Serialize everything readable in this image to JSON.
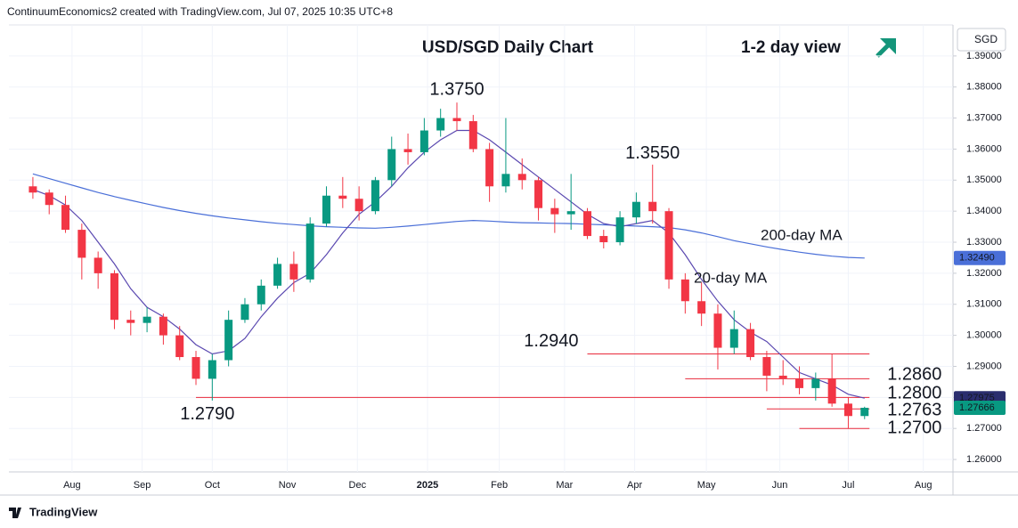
{
  "header": "ContinuumEconomics2 created with TradingView.com, Jul 07, 2025 10:35 UTC+8",
  "footer": "TradingView",
  "chart_data": {
    "type": "candlestick",
    "title": "USD/SGD Daily Chart",
    "subtitle": "1-2 day view",
    "currency": "SGD",
    "up_color": "#089981",
    "down_color": "#f23645",
    "annotation_color": "#e8293b",
    "candles": [
      [
        1.348,
        1.351,
        1.344,
        1.346
      ],
      [
        1.346,
        1.347,
        1.339,
        1.342
      ],
      [
        1.342,
        1.345,
        1.333,
        1.334
      ],
      [
        1.334,
        1.336,
        1.318,
        1.325
      ],
      [
        1.325,
        1.327,
        1.315,
        1.32
      ],
      [
        1.32,
        1.321,
        1.302,
        1.305
      ],
      [
        1.305,
        1.308,
        1.3,
        1.304
      ],
      [
        1.304,
        1.309,
        1.301,
        1.306
      ],
      [
        1.306,
        1.307,
        1.297,
        1.3
      ],
      [
        1.3,
        1.303,
        1.292,
        1.293
      ],
      [
        1.293,
        1.295,
        1.284,
        1.286
      ],
      [
        1.286,
        1.294,
        1.279,
        1.292
      ],
      [
        1.292,
        1.308,
        1.29,
        1.305
      ],
      [
        1.305,
        1.312,
        1.304,
        1.31
      ],
      [
        1.31,
        1.318,
        1.308,
        1.316
      ],
      [
        1.316,
        1.325,
        1.315,
        1.323
      ],
      [
        1.323,
        1.327,
        1.314,
        1.318
      ],
      [
        1.318,
        1.338,
        1.317,
        1.336
      ],
      [
        1.336,
        1.348,
        1.335,
        1.345
      ],
      [
        1.345,
        1.351,
        1.341,
        1.344
      ],
      [
        1.344,
        1.348,
        1.337,
        1.34
      ],
      [
        1.34,
        1.351,
        1.339,
        1.35
      ],
      [
        1.35,
        1.364,
        1.348,
        1.36
      ],
      [
        1.36,
        1.365,
        1.355,
        1.359
      ],
      [
        1.359,
        1.37,
        1.358,
        1.366
      ],
      [
        1.366,
        1.373,
        1.364,
        1.37
      ],
      [
        1.37,
        1.375,
        1.366,
        1.369
      ],
      [
        1.369,
        1.371,
        1.359,
        1.36
      ],
      [
        1.36,
        1.362,
        1.343,
        1.348
      ],
      [
        1.348,
        1.37,
        1.346,
        1.352
      ],
      [
        1.352,
        1.357,
        1.347,
        1.35
      ],
      [
        1.35,
        1.351,
        1.337,
        1.341
      ],
      [
        1.341,
        1.344,
        1.333,
        1.339
      ],
      [
        1.339,
        1.352,
        1.334,
        1.34
      ],
      [
        1.34,
        1.341,
        1.331,
        1.332
      ],
      [
        1.332,
        1.334,
        1.328,
        1.33
      ],
      [
        1.33,
        1.34,
        1.329,
        1.338
      ],
      [
        1.338,
        1.346,
        1.336,
        1.343
      ],
      [
        1.343,
        1.355,
        1.336,
        1.34
      ],
      [
        1.34,
        1.341,
        1.315,
        1.318
      ],
      [
        1.318,
        1.32,
        1.307,
        1.311
      ],
      [
        1.311,
        1.317,
        1.303,
        1.307
      ],
      [
        1.307,
        1.31,
        1.289,
        1.296
      ],
      [
        1.296,
        1.308,
        1.294,
        1.302
      ],
      [
        1.302,
        1.304,
        1.292,
        1.293
      ],
      [
        1.293,
        1.295,
        1.282,
        1.287
      ],
      [
        1.287,
        1.292,
        1.284,
        1.286
      ],
      [
        1.286,
        1.29,
        1.281,
        1.283
      ],
      [
        1.283,
        1.288,
        1.279,
        1.286
      ],
      [
        1.286,
        1.294,
        1.277,
        1.278
      ],
      [
        1.278,
        1.28,
        1.27,
        1.274
      ],
      [
        1.274,
        1.277,
        1.273,
        1.27666
      ]
    ],
    "last_close_label": "1.27666",
    "series": [
      {
        "name": "200-day MA",
        "color": "#4a6fd8",
        "last_label": "1.32490",
        "values": [
          1.352,
          1.3505,
          1.349,
          1.3475,
          1.346,
          1.3447,
          1.3435,
          1.3423,
          1.3412,
          1.3402,
          1.3393,
          1.3385,
          1.3378,
          1.3372,
          1.3366,
          1.3361,
          1.3357,
          1.3353,
          1.335,
          1.3348,
          1.3346,
          1.3345,
          1.3348,
          1.3352,
          1.3357,
          1.3362,
          1.3367,
          1.337,
          1.3368,
          1.3365,
          1.3363,
          1.3362,
          1.3361,
          1.336,
          1.3358,
          1.3356,
          1.3354,
          1.3352,
          1.335,
          1.3347,
          1.334,
          1.333,
          1.3318,
          1.3305,
          1.3295,
          1.3285,
          1.3276,
          1.3268,
          1.3261,
          1.3255,
          1.3251,
          1.3249
        ]
      },
      {
        "name": "20-day MA",
        "color": "#5a48b0",
        "last_label": "1.27975",
        "values": [
          1.347,
          1.345,
          1.342,
          1.337,
          1.33,
          1.323,
          1.315,
          1.309,
          1.306,
          1.302,
          1.297,
          1.294,
          1.295,
          1.299,
          1.306,
          1.312,
          1.317,
          1.32,
          1.326,
          1.333,
          1.339,
          1.343,
          1.348,
          1.354,
          1.359,
          1.363,
          1.366,
          1.366,
          1.363,
          1.359,
          1.355,
          1.351,
          1.347,
          1.343,
          1.339,
          1.336,
          1.335,
          1.336,
          1.337,
          1.333,
          1.326,
          1.318,
          1.311,
          1.305,
          1.301,
          1.298,
          1.293,
          1.288,
          1.286,
          1.284,
          1.281,
          1.27975
        ]
      }
    ],
    "levels": [
      {
        "value": 1.294,
        "label": "1.2940"
      },
      {
        "value": 1.286,
        "label": "1.2860"
      },
      {
        "value": 1.28,
        "label": "1.2800"
      },
      {
        "value": 1.2763,
        "label": "1.2763"
      },
      {
        "value": 1.27,
        "label": "1.2700"
      }
    ],
    "annotations": [
      {
        "value": 1.375,
        "label": "1.3750"
      },
      {
        "value": 1.355,
        "label": "1.3550"
      },
      {
        "value": 1.279,
        "label": "1.2790"
      }
    ],
    "xlim": [
      -1.47,
      56.42
    ],
    "xticks": [
      {
        "value": 2.4,
        "label": "Aug"
      },
      {
        "value": 6.7,
        "label": "Sep"
      },
      {
        "value": 11.0,
        "label": "Oct"
      },
      {
        "value": 15.6,
        "label": "Nov"
      },
      {
        "value": 19.9,
        "label": "Dec"
      },
      {
        "value": 24.2,
        "label": "2025"
      },
      {
        "value": 28.6,
        "label": "Feb"
      },
      {
        "value": 32.6,
        "label": "Mar"
      },
      {
        "value": 36.9,
        "label": "Apr"
      },
      {
        "value": 41.3,
        "label": "May"
      },
      {
        "value": 45.8,
        "label": "Jun"
      },
      {
        "value": 50.0,
        "label": "Jul"
      },
      {
        "value": 54.6,
        "label": "Aug"
      }
    ],
    "ylim": [
      1.256,
      1.4
    ],
    "yticks": [
      {
        "value": 1.26,
        "label": "1.26000"
      },
      {
        "value": 1.27,
        "label": "1.27000"
      },
      {
        "value": 1.28,
        "label": "1.28000"
      },
      {
        "value": 1.29,
        "label": "1.29000"
      },
      {
        "value": 1.3,
        "label": "1.30000"
      },
      {
        "value": 1.31,
        "label": "1.31000"
      },
      {
        "value": 1.32,
        "label": "1.32000"
      },
      {
        "value": 1.33,
        "label": "1.33000"
      },
      {
        "value": 1.34,
        "label": "1.34000"
      },
      {
        "value": 1.35,
        "label": "1.35000"
      },
      {
        "value": 1.36,
        "label": "1.36000"
      },
      {
        "value": 1.37,
        "label": "1.37000"
      },
      {
        "value": 1.38,
        "label": "1.38000"
      },
      {
        "value": 1.39,
        "label": "1.39000"
      }
    ],
    "grid": true
  }
}
